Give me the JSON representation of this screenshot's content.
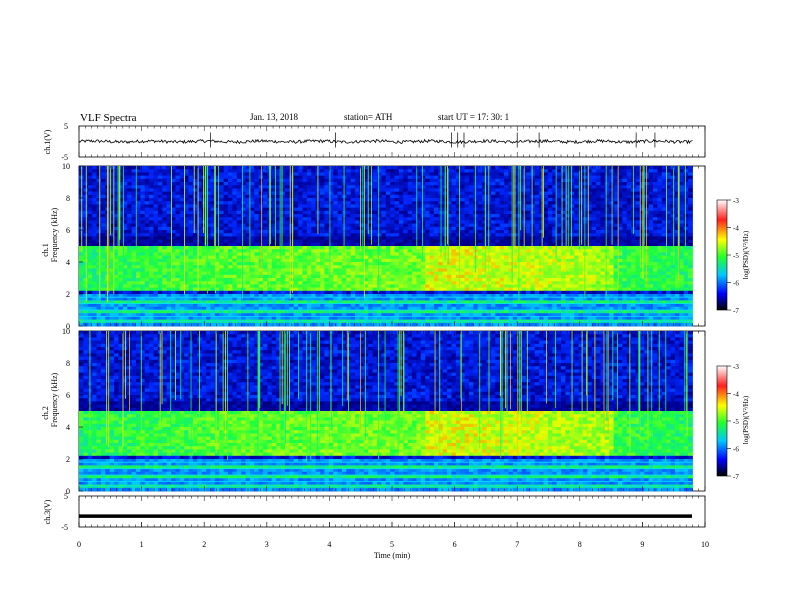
{
  "header": {
    "title": "VLF  Spectra",
    "date": "Jan. 13, 2018",
    "station": "station= ATH",
    "start": "start  UT  =    17: 30: 1"
  },
  "chart_data": [
    {
      "type": "line",
      "panel": "ch1",
      "ylabel": "ch.1(V)",
      "xlim": [
        0,
        10
      ],
      "ylim": [
        -5,
        5
      ],
      "yticks": [
        "5",
        "-5"
      ],
      "baseline": 0,
      "noise_amplitude_v": 0.5,
      "spikes_min": [
        5.95,
        6.05,
        6.15,
        9.2,
        7.35,
        2.1,
        4.1,
        7.0,
        8.9
      ]
    },
    {
      "type": "heatmap",
      "panel": "ch1-spectrogram",
      "ylabel_top": "ch.1",
      "ylabel": "Frequency  (kHz)",
      "xlim": [
        0,
        9.8
      ],
      "ylim": [
        0,
        10
      ],
      "yticks": [
        "0",
        "2",
        "4",
        "6",
        "8",
        "10"
      ],
      "band_low_khz": 2.2,
      "band_high_khz": 5.0,
      "colorbar": {
        "label": "log(PSD)(V²/Hz)",
        "range": [
          -7,
          -3
        ],
        "ticks": [
          "-3",
          "-4",
          "-5",
          "-6",
          "-7"
        ],
        "colors": [
          "#ffffff",
          "#ff0000",
          "#ffff00",
          "#00ff40",
          "#00c8ff",
          "#0000ff",
          "#000000"
        ]
      }
    },
    {
      "type": "heatmap",
      "panel": "ch2-spectrogram",
      "ylabel_top": "ch.2",
      "ylabel": "Frequency  (kHz)",
      "xlim": [
        0,
        9.8
      ],
      "ylim": [
        0,
        10
      ],
      "yticks": [
        "0",
        "2",
        "4",
        "6",
        "8",
        "10"
      ],
      "band_low_khz": 2.2,
      "band_high_khz": 5.0,
      "colorbar": {
        "label": "log(PSD)(V²/Hz)",
        "range": [
          -7,
          -3
        ],
        "ticks": [
          "-3",
          "-4",
          "-5",
          "-6",
          "-7"
        ]
      }
    },
    {
      "type": "line",
      "panel": "ch3",
      "ylabel": "ch.3(V)",
      "xlim": [
        0,
        10
      ],
      "ylim": [
        -5,
        5
      ],
      "yticks": [
        "5",
        "-5"
      ],
      "baseline_v": -1.5,
      "xlabel": "Time  (min)",
      "xticks": [
        "0",
        "1",
        "2",
        "3",
        "4",
        "5",
        "6",
        "7",
        "8",
        "9",
        "10"
      ]
    }
  ]
}
